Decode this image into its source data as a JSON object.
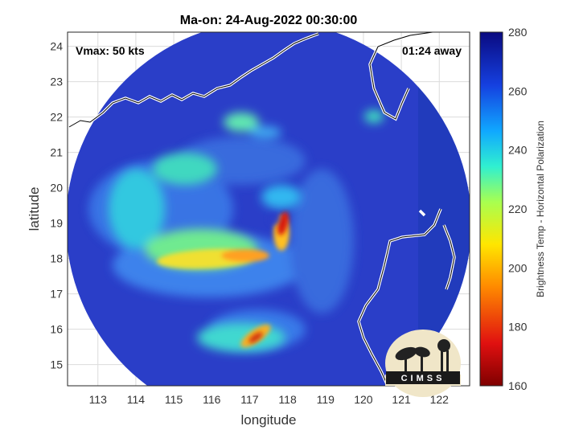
{
  "title": "Ma-on: 24-Aug-2022 00:30:00",
  "annotations": {
    "vmax": "Vmax: 50 kts",
    "time_away": "01:24 away"
  },
  "axes": {
    "xlabel": "longitude",
    "ylabel": "latitude",
    "xlim": [
      112.2,
      122.8
    ],
    "ylim": [
      14.4,
      24.4
    ],
    "xticks": [
      "113",
      "114",
      "115",
      "116",
      "117",
      "118",
      "119",
      "120",
      "121",
      "122"
    ],
    "yticks": [
      "24",
      "23",
      "22",
      "21",
      "20",
      "19",
      "18",
      "17",
      "16",
      "15"
    ],
    "grid": true
  },
  "colorbar": {
    "label": "Brightness Temp - Horizontal Polarization",
    "range": [
      160,
      280
    ],
    "ticks": [
      "280",
      "260",
      "240",
      "220",
      "200",
      "180",
      "160"
    ]
  },
  "logo": {
    "text": "CIMSS"
  },
  "colors": {
    "background_field": "#2d3fc8",
    "coastline": "#ffffff",
    "warm_core": "#d81a10"
  }
}
